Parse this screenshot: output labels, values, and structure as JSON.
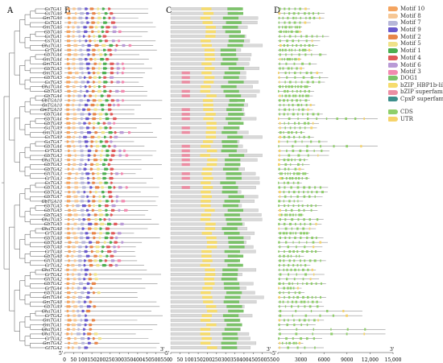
{
  "panels": {
    "A": "A",
    "B": "B",
    "C": "C",
    "D": "D"
  },
  "genes": [
    "GsTGA1",
    "GsTGA6",
    "GmTGA6",
    "GsTGA1",
    "GmTGA6",
    "GbTGA6",
    "GsTGA1",
    "GsTGA1",
    "GhaTGA1",
    "GrTGA4",
    "GbTGA4",
    "GmTGA4",
    "GmTGA1",
    "GbTGA5",
    "GmTGA5",
    "GbTGA5",
    "GsTGA5",
    "GhaTGA4",
    "GbTGA5",
    "GbTGA4",
    "GbTGA10",
    "GsTGA10",
    "GmTGA10",
    "GbTGA4",
    "GbTGA4",
    "GbTGA9",
    "GaTGA9",
    "GmTGA9",
    "GsTGA9",
    "GaTGA7",
    "GbTGA4",
    "GrTGA5",
    "GbTGA3",
    "GhaTGA3",
    "GbTGA3",
    "GbTGA2",
    "GhTGA3",
    "GrTGA3",
    "GsTGA3",
    "GbTGA3",
    "GbTGA2",
    "GbTGA7",
    "GbTGA10",
    "GbTGA5",
    "GbTGA5",
    "GbTGA5",
    "GhaTGA5",
    "GbTGA5",
    "GhaTGA8",
    "GrTGA8",
    "GbTGA8",
    "GbTGA8",
    "GbTGA8",
    "GrTGA8",
    "GbTGA8",
    "GhTGA8",
    "GrTGA2",
    "GhaTGA2",
    "GrTGA2",
    "GhTGA2",
    "GbTGA2",
    "GrTGA4",
    "GbTGA4",
    "GmTGA4",
    "GmTGA8",
    "GbTGA9",
    "GhaTGA1",
    "GrTGA2",
    "GmTGA1",
    "GmTGA1",
    "GhaTGA1",
    "GhaTGA2",
    "GrTGA2",
    "GmTGA2",
    "GtTGA2"
  ],
  "motif_legend": [
    {
      "name": "Motif 10",
      "color": "#f4a460"
    },
    {
      "name": "Motif 8",
      "color": "#f6c795"
    },
    {
      "name": "Motif 7",
      "color": "#b7b7d9"
    },
    {
      "name": "Motif 9",
      "color": "#6a5acd"
    },
    {
      "name": "Motif 2",
      "color": "#e8864a"
    },
    {
      "name": "Motif 5",
      "color": "#f0e28a"
    },
    {
      "name": "Motif 1",
      "color": "#4caf50"
    },
    {
      "name": "Motif 4",
      "color": "#e05a5a"
    },
    {
      "name": "Motif 6",
      "color": "#b99ad6"
    },
    {
      "name": "Motif 3",
      "color": "#f28ab0"
    }
  ],
  "domain_legend": [
    {
      "name": "DOG1",
      "color": "#7cc36a"
    },
    {
      "name": "bZIP_HBP1b-like",
      "color": "#f6dc6e"
    },
    {
      "name": "bZIP superfamily",
      "color": "#ec8fa4"
    },
    {
      "name": "CpxP superfamily",
      "color": "#3e8f8c"
    }
  ],
  "structure_legend": [
    {
      "name": "CDS",
      "color": "#8fcf6a"
    },
    {
      "name": "UTR",
      "color": "#f6d36a"
    }
  ],
  "b_axis": {
    "ticks": [
      "0",
      "50",
      "100",
      "150",
      "200",
      "250",
      "300",
      "350",
      "400",
      "450",
      "500",
      "550"
    ],
    "start": "5'",
    "end": "3'"
  },
  "c_axis": {
    "ticks": [
      "0",
      "50",
      "100",
      "150",
      "200",
      "250",
      "300",
      "350",
      "400",
      "450",
      "500",
      "550"
    ],
    "start": "5'",
    "end": "3'"
  },
  "d_axis": {
    "ticks": [
      "0",
      "3000",
      "6000",
      "9000",
      "12,000",
      "15,000"
    ],
    "start": "5'",
    "end": "3'"
  }
}
